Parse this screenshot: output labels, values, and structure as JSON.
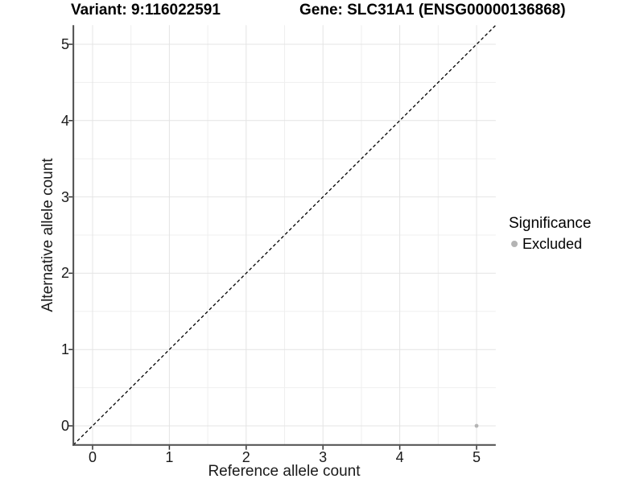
{
  "title": {
    "variant": "Variant: 9:116022591",
    "gene": "Gene: SLC31A1 (ENSG00000136868)"
  },
  "chart_data": {
    "type": "scatter",
    "title": "Variant: 9:116022591   Gene: SLC31A1 (ENSG00000136868)",
    "xlabel": "Reference allele count",
    "ylabel": "Alternative allele count",
    "xlim": [
      -0.25,
      5.25
    ],
    "ylim": [
      -0.25,
      5.25
    ],
    "x_ticks": [
      0,
      1,
      2,
      3,
      4,
      5
    ],
    "y_ticks": [
      0,
      1,
      2,
      3,
      4,
      5
    ],
    "grid": "major at integers, minor at halves, light grey on white",
    "reference_line": {
      "type": "identity y=x",
      "style": "dashed",
      "color": "#000000"
    },
    "points": [
      {
        "x": 5,
        "y": 0,
        "series": "Excluded"
      }
    ],
    "legend": {
      "title": "Significance",
      "position": "right",
      "items": [
        {
          "label": "Excluded",
          "color": "#b4b4b4"
        }
      ]
    },
    "colors": {
      "point": "#b4b4b4",
      "grid_major": "#e4e4e4",
      "grid_minor": "#efefef",
      "axis_line": "#4d4d4d",
      "tick_mark": "#333333",
      "text": "#000000"
    }
  }
}
